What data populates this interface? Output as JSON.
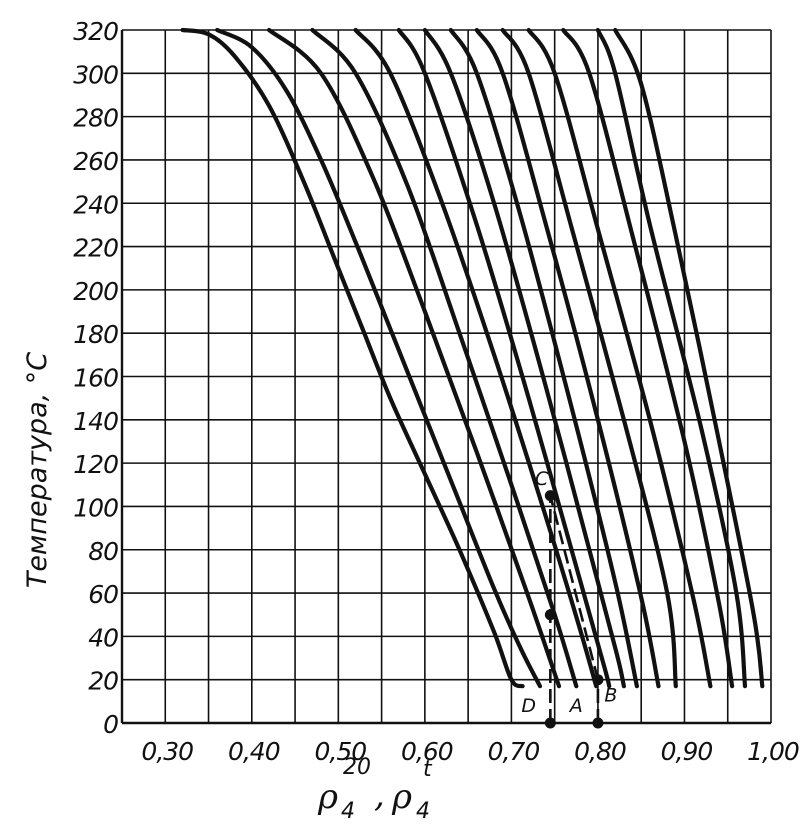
{
  "chart_data": {
    "type": "line",
    "title": "",
    "ylabel": "Температура, °С",
    "xlabel": {
      "symbol": "ρ",
      "sub": "4",
      "sup1": "20",
      "sup2": "t",
      "separator": ","
    },
    "xlim": [
      0.25,
      1.0
    ],
    "ylim": [
      0,
      320
    ],
    "grid": true,
    "x_ticks": [
      {
        "value": 0.3,
        "label": "0,30"
      },
      {
        "value": 0.4,
        "label": "0,40"
      },
      {
        "value": 0.5,
        "label": "0,50"
      },
      {
        "value": 0.6,
        "label": "0,60"
      },
      {
        "value": 0.7,
        "label": "0,70"
      },
      {
        "value": 0.8,
        "label": "0,80"
      },
      {
        "value": 0.9,
        "label": "0,90"
      },
      {
        "value": 1.0,
        "label": "1,00"
      }
    ],
    "y_ticks": [
      {
        "value": 0,
        "label": "0"
      },
      {
        "value": 20,
        "label": "20"
      },
      {
        "value": 40,
        "label": "40"
      },
      {
        "value": 60,
        "label": "60"
      },
      {
        "value": 80,
        "label": "80"
      },
      {
        "value": 100,
        "label": "100"
      },
      {
        "value": 120,
        "label": "120"
      },
      {
        "value": 140,
        "label": "140"
      },
      {
        "value": 160,
        "label": "160"
      },
      {
        "value": 180,
        "label": "180"
      },
      {
        "value": 200,
        "label": "200"
      },
      {
        "value": 220,
        "label": "220"
      },
      {
        "value": 240,
        "label": "240"
      },
      {
        "value": 260,
        "label": "260"
      },
      {
        "value": 280,
        "label": "280"
      },
      {
        "value": 300,
        "label": "300"
      },
      {
        "value": 320,
        "label": "320"
      }
    ],
    "series": [
      {
        "points": [
          [
            0.32,
            320
          ],
          [
            0.35,
            318
          ],
          [
            0.38,
            308
          ],
          [
            0.42,
            285
          ],
          [
            0.46,
            250
          ],
          [
            0.5,
            210
          ],
          [
            0.53,
            180
          ],
          [
            0.56,
            150
          ],
          [
            0.6,
            115
          ],
          [
            0.64,
            80
          ],
          [
            0.68,
            42
          ],
          [
            0.7,
            20
          ],
          [
            0.713,
            17
          ]
        ]
      },
      {
        "points": [
          [
            0.36,
            320
          ],
          [
            0.4,
            312
          ],
          [
            0.44,
            292
          ],
          [
            0.48,
            260
          ],
          [
            0.52,
            222
          ],
          [
            0.56,
            182
          ],
          [
            0.6,
            142
          ],
          [
            0.64,
            102
          ],
          [
            0.68,
            62
          ],
          [
            0.71,
            35
          ],
          [
            0.733,
            17
          ]
        ]
      },
      {
        "points": [
          [
            0.42,
            320
          ],
          [
            0.48,
            300
          ],
          [
            0.54,
            252
          ],
          [
            0.6,
            190
          ],
          [
            0.66,
            125
          ],
          [
            0.72,
            58
          ],
          [
            0.755,
            17
          ]
        ]
      },
      {
        "points": [
          [
            0.47,
            320
          ],
          [
            0.52,
            300
          ],
          [
            0.58,
            248
          ],
          [
            0.64,
            180
          ],
          [
            0.7,
            110
          ],
          [
            0.75,
            50
          ],
          [
            0.775,
            17
          ]
        ]
      },
      {
        "points": [
          [
            0.52,
            320
          ],
          [
            0.56,
            300
          ],
          [
            0.62,
            240
          ],
          [
            0.68,
            170
          ],
          [
            0.74,
            95
          ],
          [
            0.778,
            45
          ],
          [
            0.798,
            17
          ]
        ]
      },
      {
        "points": [
          [
            0.57,
            320
          ],
          [
            0.6,
            300
          ],
          [
            0.66,
            230
          ],
          [
            0.72,
            150
          ],
          [
            0.78,
            65
          ],
          [
            0.808,
            25
          ],
          [
            0.813,
            17
          ]
        ]
      },
      {
        "points": [
          [
            0.6,
            320
          ],
          [
            0.63,
            300
          ],
          [
            0.68,
            240
          ],
          [
            0.74,
            155
          ],
          [
            0.8,
            65
          ],
          [
            0.823,
            30
          ],
          [
            0.83,
            17
          ]
        ]
      },
      {
        "points": [
          [
            0.63,
            320
          ],
          [
            0.66,
            300
          ],
          [
            0.71,
            235
          ],
          [
            0.77,
            145
          ],
          [
            0.82,
            65
          ],
          [
            0.845,
            17
          ]
        ]
      },
      {
        "points": [
          [
            0.66,
            320
          ],
          [
            0.69,
            300
          ],
          [
            0.74,
            230
          ],
          [
            0.8,
            140
          ],
          [
            0.85,
            58
          ],
          [
            0.87,
            17
          ]
        ]
      },
      {
        "points": [
          [
            0.69,
            320
          ],
          [
            0.72,
            300
          ],
          [
            0.77,
            228
          ],
          [
            0.83,
            140
          ],
          [
            0.88,
            60
          ],
          [
            0.89,
            17
          ]
        ]
      },
      {
        "points": [
          [
            0.72,
            320
          ],
          [
            0.75,
            300
          ],
          [
            0.8,
            228
          ],
          [
            0.86,
            140
          ],
          [
            0.91,
            58
          ],
          [
            0.93,
            17
          ]
        ]
      },
      {
        "points": [
          [
            0.76,
            320
          ],
          [
            0.79,
            300
          ],
          [
            0.84,
            225
          ],
          [
            0.9,
            130
          ],
          [
            0.94,
            55
          ],
          [
            0.955,
            17
          ]
        ]
      },
      {
        "points": [
          [
            0.8,
            320
          ],
          [
            0.82,
            300
          ],
          [
            0.86,
            230
          ],
          [
            0.92,
            135
          ],
          [
            0.96,
            60
          ],
          [
            0.97,
            17
          ]
        ]
      },
      {
        "points": [
          [
            0.82,
            320
          ],
          [
            0.85,
            295
          ],
          [
            0.89,
            225
          ],
          [
            0.94,
            130
          ],
          [
            0.98,
            50
          ],
          [
            0.99,
            17
          ]
        ]
      }
    ],
    "guide_lines": [
      {
        "from": [
          0.745,
          0
        ],
        "to": [
          0.745,
          105
        ]
      },
      {
        "from": [
          0.8,
          0
        ],
        "to": [
          0.8,
          20
        ]
      },
      {
        "from": [
          0.8,
          20
        ],
        "to": [
          0.745,
          105
        ]
      }
    ],
    "markers": [
      {
        "x": 0.745,
        "y": 0
      },
      {
        "x": 0.8,
        "y": 0
      },
      {
        "x": 0.8,
        "y": 20
      },
      {
        "x": 0.745,
        "y": 105
      },
      {
        "x": 0.745,
        "y": 50
      }
    ],
    "annotations": [
      {
        "label": "D",
        "x": 0.72,
        "y": 5
      },
      {
        "label": "A",
        "x": 0.775,
        "y": 5
      },
      {
        "label": "B",
        "x": 0.815,
        "y": 10
      },
      {
        "label": "C",
        "x": 0.735,
        "y": 110
      }
    ]
  }
}
